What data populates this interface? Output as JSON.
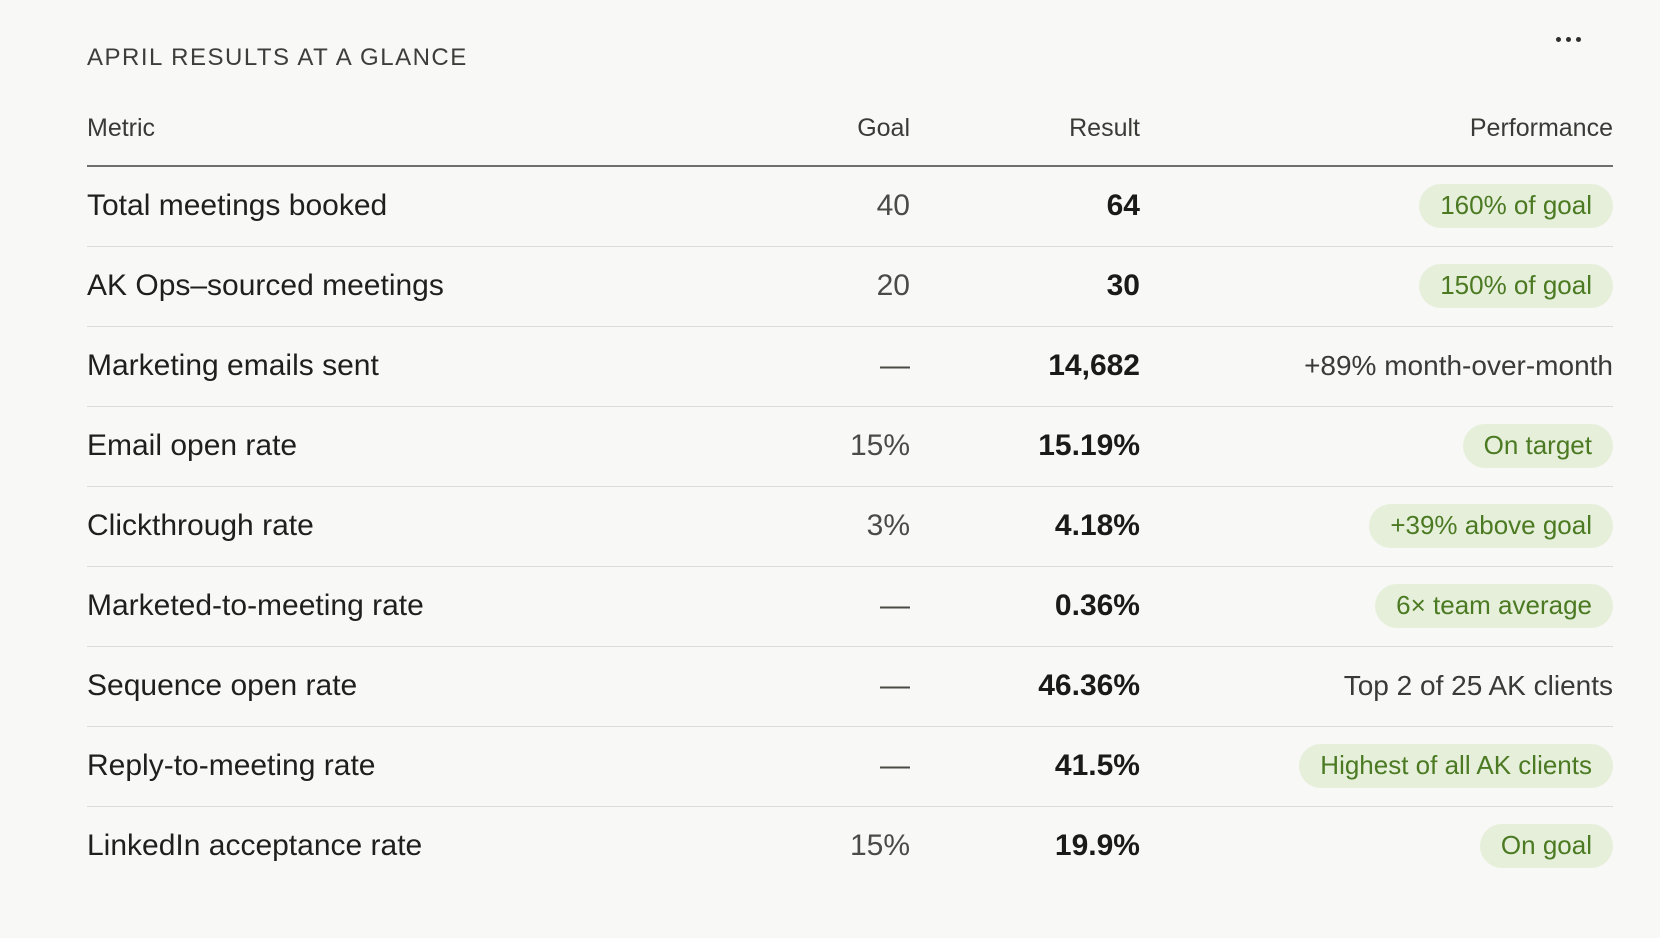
{
  "card": {
    "title": "APRIL RESULTS AT A GLANCE",
    "more_icon": "more-horizontal-icon"
  },
  "table": {
    "headers": {
      "metric": "Metric",
      "goal": "Goal",
      "result": "Result",
      "performance": "Performance"
    },
    "rows": [
      {
        "metric": "Total meetings booked",
        "goal": "40",
        "result": "64",
        "performance": "160% of goal",
        "highlight": true
      },
      {
        "metric": "AK Ops–sourced meetings",
        "goal": "20",
        "result": "30",
        "performance": "150% of goal",
        "highlight": true
      },
      {
        "metric": "Marketing emails sent",
        "goal": "—",
        "result": "14,682",
        "performance": "+89% month-over-month",
        "highlight": false
      },
      {
        "metric": "Email open rate",
        "goal": "15%",
        "result": "15.19%",
        "performance": "On target",
        "highlight": true
      },
      {
        "metric": "Clickthrough rate",
        "goal": "3%",
        "result": "4.18%",
        "performance": "+39% above goal",
        "highlight": true
      },
      {
        "metric": "Marketed-to-meeting rate",
        "goal": "—",
        "result": "0.36%",
        "performance": "6× team average",
        "highlight": true
      },
      {
        "metric": "Sequence open rate",
        "goal": "—",
        "result": "46.36%",
        "performance": "Top 2 of 25 AK clients",
        "highlight": false
      },
      {
        "metric": "Reply-to-meeting rate",
        "goal": "—",
        "result": "41.5%",
        "performance": "Highest of all AK clients",
        "highlight": true
      },
      {
        "metric": "LinkedIn acceptance rate",
        "goal": "15%",
        "result": "19.9%",
        "performance": "On goal",
        "highlight": true
      }
    ]
  },
  "colors": {
    "card_background": "#f8f8f6",
    "pill_background": "#e6efda",
    "pill_text": "#4b7a23",
    "divider": "#dcdcd8"
  }
}
